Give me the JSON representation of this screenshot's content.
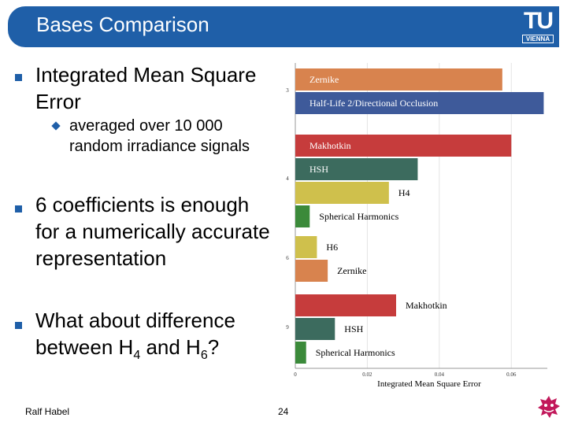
{
  "slide": {
    "title": "Bases Comparison",
    "logo": {
      "main": "TU",
      "sub": "VIENNA"
    },
    "bullets": [
      {
        "text": "Integrated Mean Square Error"
      },
      {
        "text": "averaged over 10 000 random irradiance signals"
      },
      {
        "text": "6 coefficients is enough for a numerically accurate representation"
      },
      {
        "text_before": "What about difference between H",
        "sub1": "4",
        "text_mid": " and H",
        "sub2": "6",
        "text_after": "?"
      }
    ],
    "footer": {
      "author": "Ralf Habel",
      "page": "24"
    }
  },
  "colors": {
    "accent": "#1f5fa8",
    "zernike": "#d8834e",
    "half_life": "#3e5a9a",
    "makhotkin": "#c63c3c",
    "hsh": "#3c6b5e",
    "h_basis": "#cfc04c",
    "spherical_harmonics": "#3b8a3a"
  },
  "chart_data": {
    "type": "bar",
    "orientation": "horizontal",
    "xlabel": "Integrated Mean Square Error",
    "xlim": [
      0,
      0.07
    ],
    "xticks": [
      "0",
      "0.02",
      "0.04",
      "0.06"
    ],
    "grid": true,
    "groups": [
      {
        "label": "3",
        "bars": [
          {
            "name": "Zernike",
            "value": 0.0575,
            "color": "zernike"
          },
          {
            "name": "Half-Life 2/Directional Occlusion",
            "value": 0.069,
            "color": "half_life"
          }
        ]
      },
      {
        "label": "4",
        "bars": [
          {
            "name": "Makhotkin",
            "value": 0.06,
            "color": "makhotkin"
          },
          {
            "name": "HSH",
            "value": 0.034,
            "color": "hsh"
          },
          {
            "name": "H4",
            "value": 0.026,
            "color": "h_basis"
          },
          {
            "name": "Spherical Harmonics",
            "value": 0.004,
            "color": "spherical_harmonics"
          }
        ]
      },
      {
        "label": "6",
        "bars": [
          {
            "name": "H6",
            "value": 0.006,
            "color": "h_basis"
          },
          {
            "name": "Zernike",
            "value": 0.009,
            "color": "zernike"
          }
        ]
      },
      {
        "label": "9",
        "bars": [
          {
            "name": "Makhotkin",
            "value": 0.028,
            "color": "makhotkin"
          },
          {
            "name": "HSH",
            "value": 0.011,
            "color": "hsh"
          },
          {
            "name": "Spherical Harmonics",
            "value": 0.003,
            "color": "spherical_harmonics"
          }
        ]
      }
    ]
  }
}
